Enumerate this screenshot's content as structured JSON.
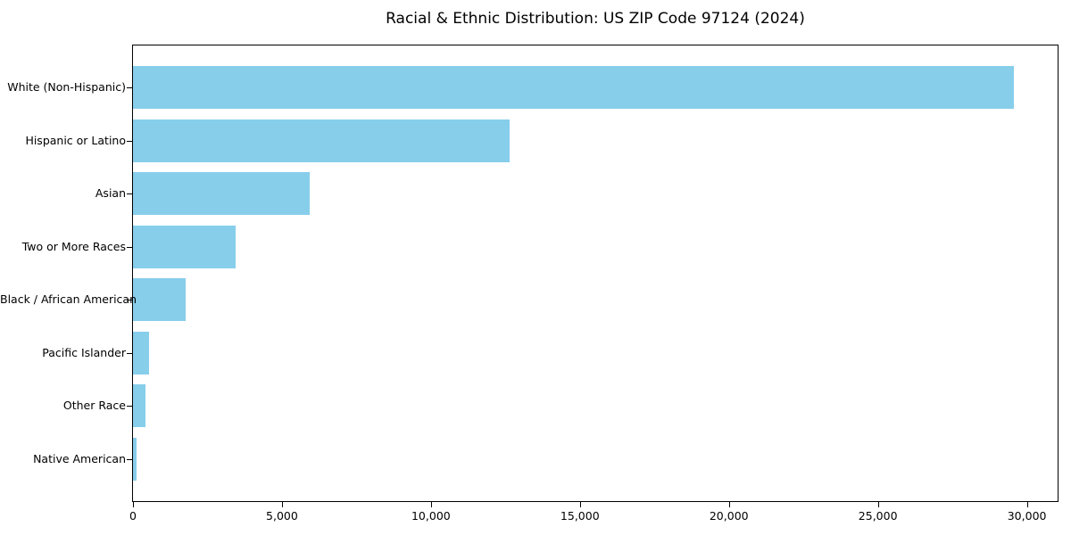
{
  "chart_data": {
    "type": "bar",
    "orientation": "horizontal",
    "title": "Racial & Ethnic Distribution: US ZIP Code 97124 (2024)",
    "categories": [
      "White (Non-Hispanic)",
      "Hispanic or Latino",
      "Asian",
      "Two or More Races",
      "Black / African American",
      "Pacific Islander",
      "Other Race",
      "Native American"
    ],
    "values": [
      29550,
      12630,
      5930,
      3440,
      1770,
      540,
      420,
      120
    ],
    "bar_color": "#87CEEB",
    "xlabel": "",
    "ylabel": "",
    "xlim": [
      0,
      31030
    ],
    "xticks": [
      {
        "value": 0,
        "label": "0"
      },
      {
        "value": 5000,
        "label": "5,000"
      },
      {
        "value": 10000,
        "label": "10,000"
      },
      {
        "value": 15000,
        "label": "15,000"
      },
      {
        "value": 20000,
        "label": "20,000"
      },
      {
        "value": 25000,
        "label": "25,000"
      },
      {
        "value": 30000,
        "label": "30,000"
      }
    ],
    "grid": false,
    "legend": "none"
  }
}
